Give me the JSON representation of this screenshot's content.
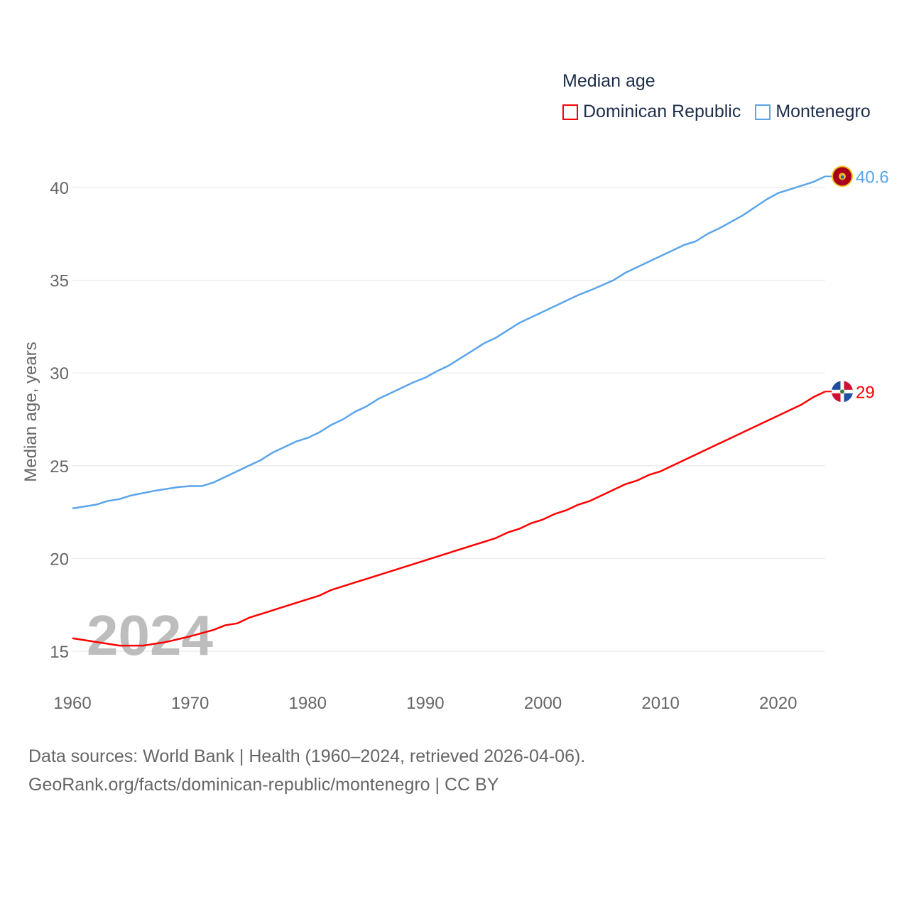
{
  "chart_data": {
    "type": "line",
    "title": "Median age",
    "xlabel": "",
    "ylabel": "Median age, years",
    "xlim": [
      1960,
      2024
    ],
    "ylim": [
      13.2,
      42
    ],
    "x_ticks": [
      1960,
      1970,
      1980,
      1990,
      2000,
      2010,
      2020
    ],
    "y_ticks": [
      15,
      20,
      25,
      30,
      35,
      40
    ],
    "grid": true,
    "legend_position": "top-right",
    "year_watermark": "2024",
    "series": [
      {
        "name": "Dominican Republic",
        "color": "#ff0000",
        "end_label": "29",
        "x": [
          1960,
          1962,
          1964,
          1966,
          1968,
          1970,
          1972,
          1973,
          1974,
          1975,
          1980,
          1981,
          1982,
          1985,
          1990,
          1995,
          1996,
          1997,
          1998,
          1999,
          2000,
          2001,
          2002,
          2003,
          2004,
          2007,
          2008,
          2009,
          2010,
          2022,
          2023,
          2024
        ],
        "y": [
          15.7,
          15.5,
          15.3,
          15.3,
          15.5,
          15.8,
          16.15,
          16.4,
          16.5,
          16.8,
          17.8,
          18.0,
          18.3,
          18.9,
          19.9,
          20.9,
          21.1,
          21.4,
          21.6,
          21.9,
          22.1,
          22.4,
          22.6,
          22.9,
          23.1,
          24.0,
          24.2,
          24.5,
          24.7,
          28.3,
          28.7,
          29.0
        ]
      },
      {
        "name": "Montenegro",
        "color": "#5aa5ea",
        "end_label": "40.6",
        "x": [
          1960,
          1962,
          1963,
          1964,
          1965,
          1967,
          1969,
          1970,
          1971,
          1972,
          1973,
          1975,
          1976,
          1977,
          1979,
          1980,
          1981,
          1982,
          1983,
          1984,
          1985,
          1986,
          1988,
          1989,
          1990,
          1991,
          1992,
          1995,
          1996,
          1998,
          2000,
          2003,
          2004,
          2006,
          2007,
          2010,
          2012,
          2013,
          2014,
          2015,
          2017,
          2019,
          2020,
          2022,
          2023,
          2024
        ],
        "y": [
          22.7,
          22.9,
          23.1,
          23.2,
          23.4,
          23.65,
          23.85,
          23.9,
          23.9,
          24.1,
          24.4,
          25.0,
          25.3,
          25.7,
          26.3,
          26.5,
          26.8,
          27.2,
          27.5,
          27.9,
          28.2,
          28.6,
          29.2,
          29.5,
          29.75,
          30.1,
          30.4,
          31.6,
          31.9,
          32.7,
          33.3,
          34.2,
          34.45,
          35.0,
          35.4,
          36.3,
          36.9,
          37.1,
          37.5,
          37.8,
          38.5,
          39.35,
          39.7,
          40.1,
          40.3,
          40.6
        ]
      }
    ]
  },
  "legend": {
    "title": "Median age",
    "items": [
      "Dominican Republic",
      "Montenegro"
    ]
  },
  "source": {
    "line1": "Data sources: World Bank | Health (1960–2024, retrieved 2026-04-06).",
    "line2": "GeoRank.org/facts/dominican-republic/montenegro | CC BY"
  }
}
